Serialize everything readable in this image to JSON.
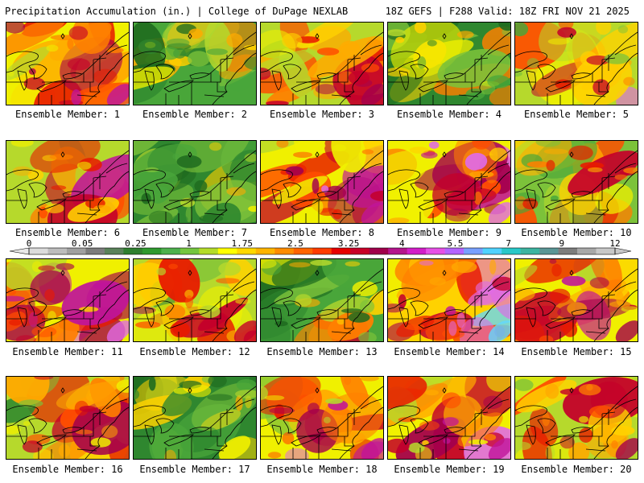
{
  "header": {
    "left_title": "Precipitation Accumulation (in.) | College of DuPage NEXLAB",
    "right_title": "18Z GEFS | F288 Valid: 18Z FRI NOV 21 2025"
  },
  "label_prefix": "Ensemble Member: ",
  "members": [
    {
      "number": "1",
      "level": 0.62
    },
    {
      "number": "2",
      "level": 0.25
    },
    {
      "number": "3",
      "level": 0.55
    },
    {
      "number": "4",
      "level": 0.2
    },
    {
      "number": "5",
      "level": 0.48
    },
    {
      "number": "6",
      "level": 0.5
    },
    {
      "number": "7",
      "level": 0.15
    },
    {
      "number": "8",
      "level": 0.66
    },
    {
      "number": "9",
      "level": 0.68
    },
    {
      "number": "10",
      "level": 0.45
    },
    {
      "number": "11",
      "level": 0.68
    },
    {
      "number": "12",
      "level": 0.52
    },
    {
      "number": "13",
      "level": 0.3
    },
    {
      "number": "14",
      "level": 0.78
    },
    {
      "number": "15",
      "level": 0.6
    },
    {
      "number": "16",
      "level": 0.48
    },
    {
      "number": "17",
      "level": 0.18
    },
    {
      "number": "18",
      "level": 0.62
    },
    {
      "number": "19",
      "level": 0.62
    },
    {
      "number": "20",
      "level": 0.55
    }
  ],
  "legend": {
    "ticks": [
      "0",
      "0.05",
      "0.25",
      "1",
      "1.75",
      "2.5",
      "3.25",
      "4",
      "5.5",
      "7",
      "9",
      "12"
    ],
    "colors": [
      "#dcdcdc",
      "#bdbdbd",
      "#a0a0a0",
      "#7c7c7c",
      "#5a825a",
      "#2f7f2f",
      "#2f9a2f",
      "#4db04d",
      "#74c63f",
      "#b4dc2a",
      "#ffff00",
      "#ffd800",
      "#ffb400",
      "#ff8c00",
      "#ff6400",
      "#ff3c00",
      "#e60000",
      "#c80028",
      "#a0004b",
      "#b4148c",
      "#d21ec8",
      "#e650e6",
      "#b464ff",
      "#78a0ff",
      "#50d2ff",
      "#28c8c8",
      "#3cb4a0",
      "#5a9696",
      "#7d7d7d",
      "#a8a8a8",
      "#c8c8c8"
    ]
  }
}
